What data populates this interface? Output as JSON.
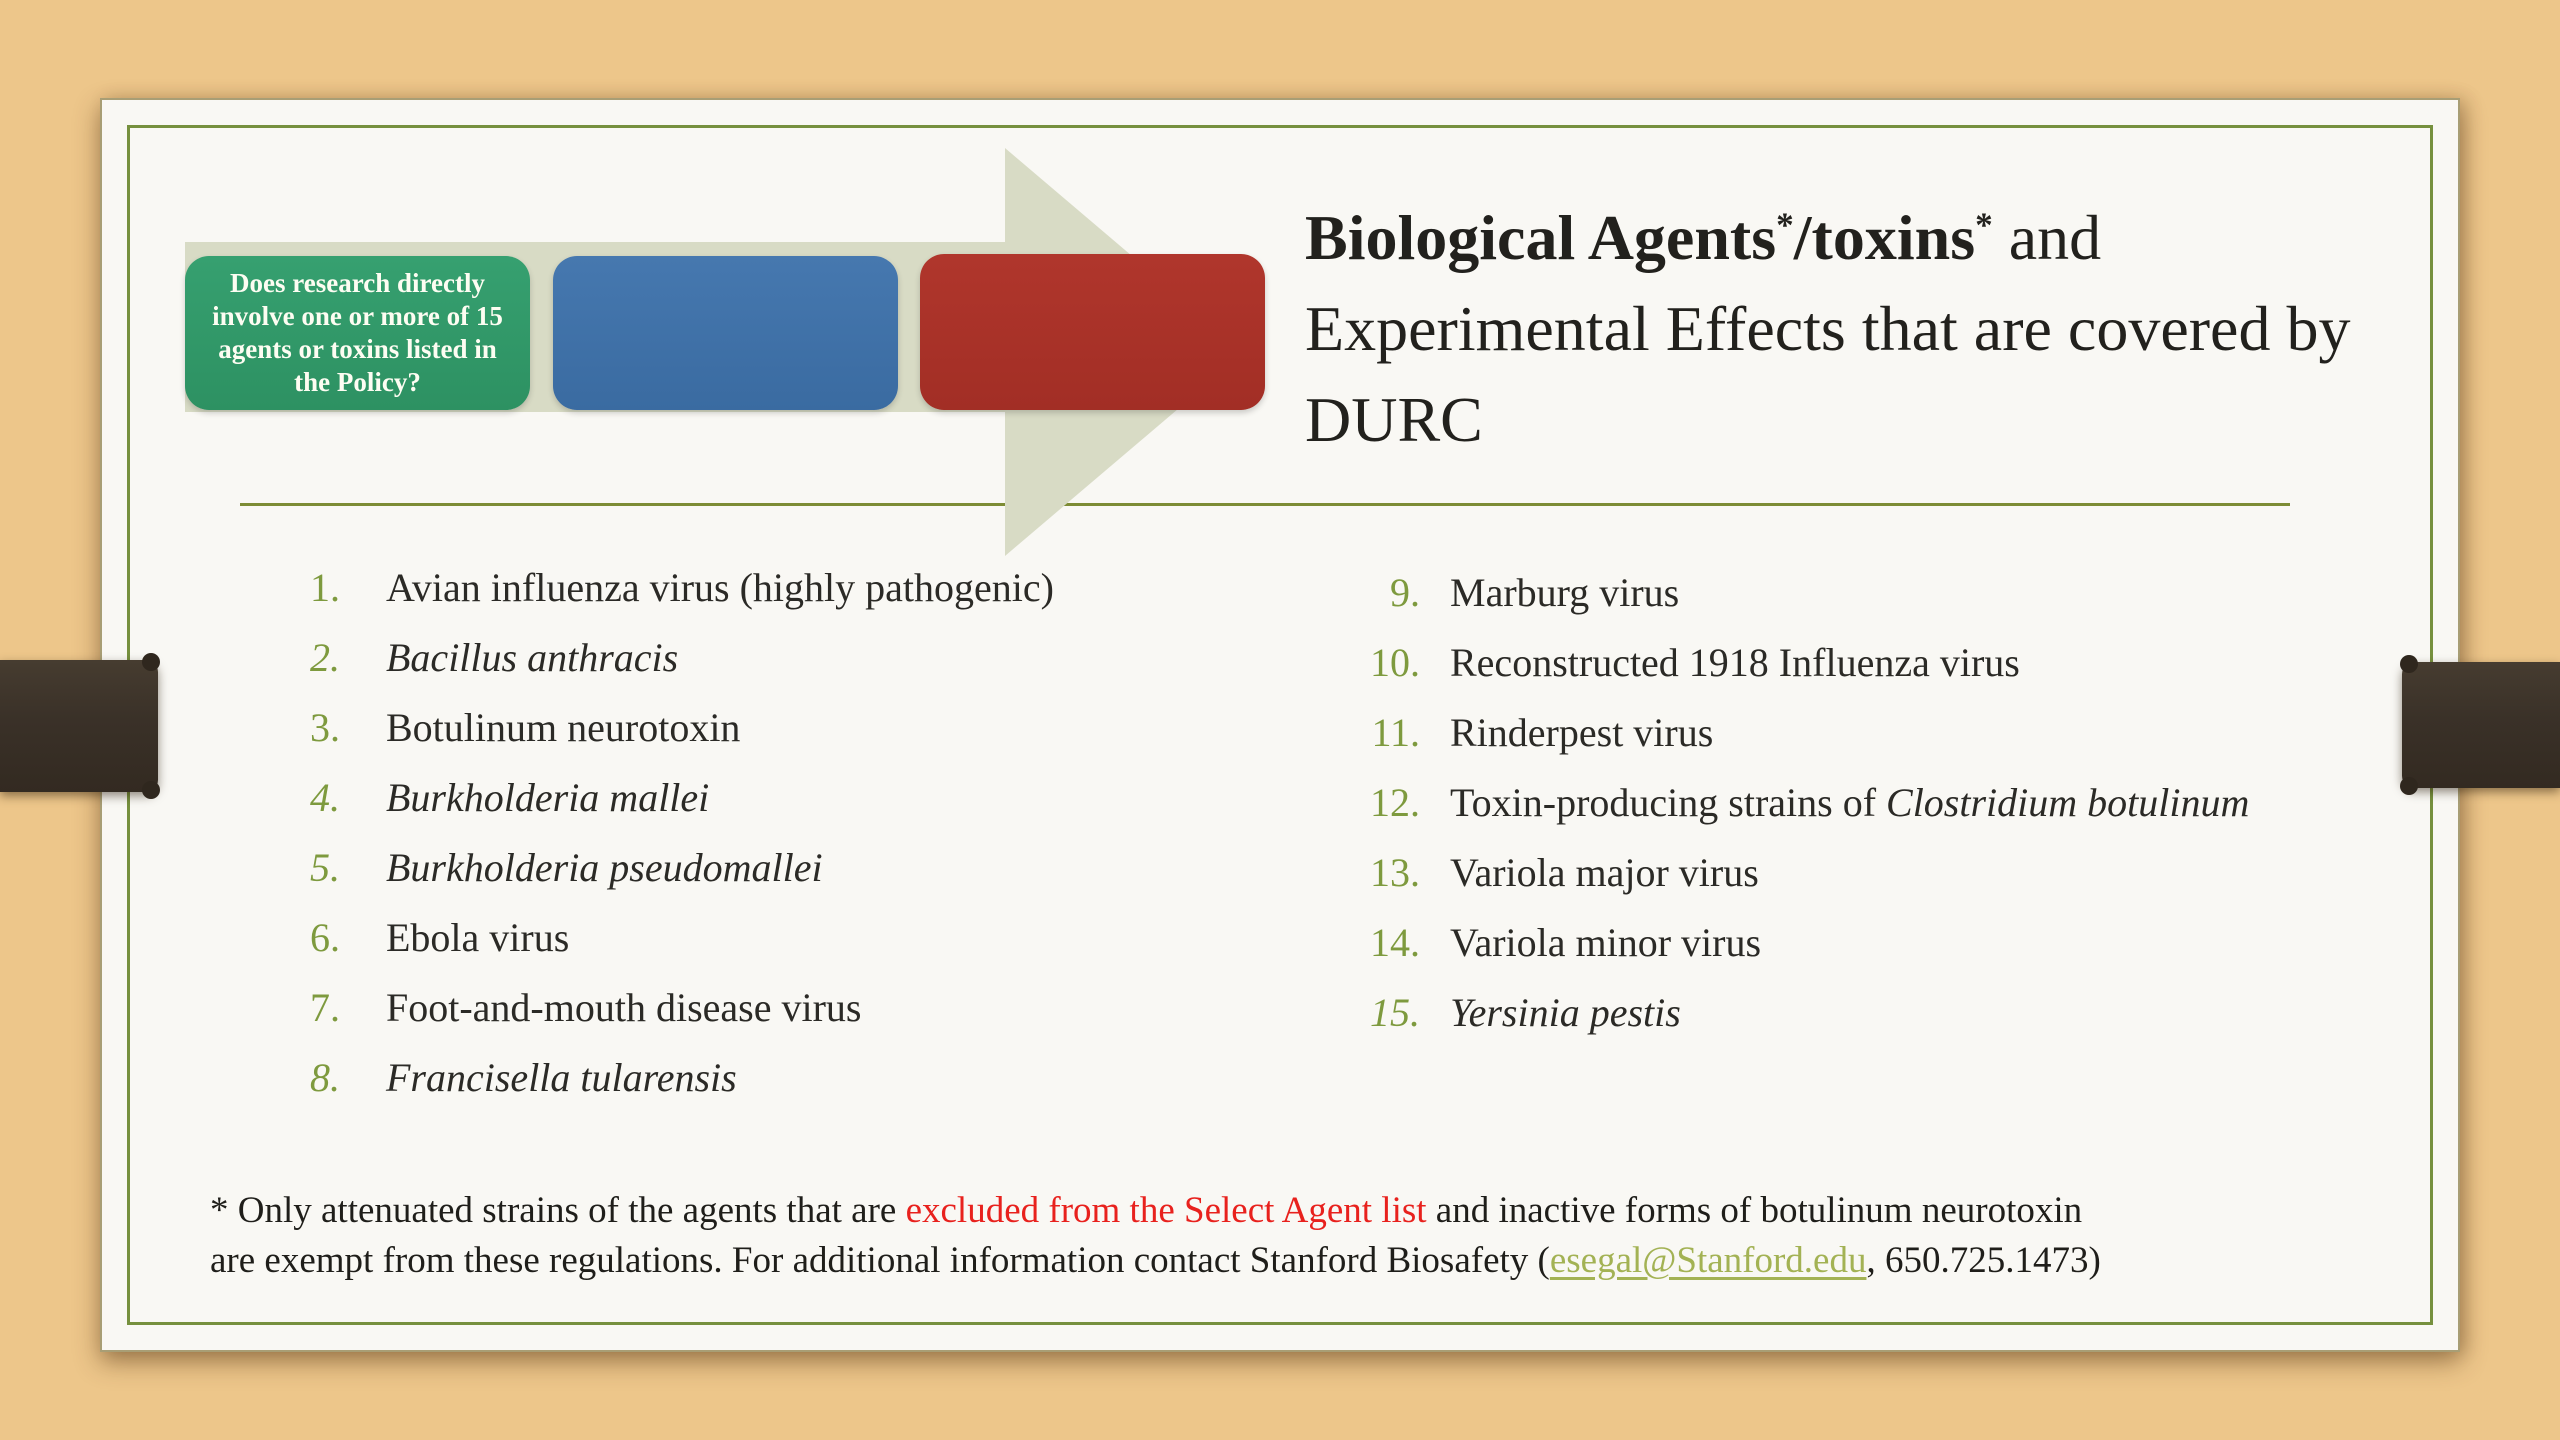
{
  "slide": {
    "flow_diagram": {
      "question_box_text": "Does research directly involve one or more of 15 agents or toxins listed in the Policy?",
      "colors": {
        "question_box_green": "#2f9767",
        "middle_box_blue": "#3e70a6",
        "end_box_red": "#a93129",
        "arrow_sage": "#d8dbc5"
      }
    },
    "title": {
      "bold_part1": "Biological Agents",
      "star1": "*",
      "bold_part2": "/toxins",
      "star2": "*",
      "regular_part": " and Experimental Effects that are covered by DURC"
    },
    "accent_colors": {
      "list_number_olive": "#7e9a3e",
      "separator_olive": "#7d8c35",
      "inner_border_olive": "#76903e",
      "footnote_red": "#e8211d",
      "link_olive": "#a3b254",
      "strap_brown": "#3a3128"
    },
    "lists": {
      "left": [
        {
          "num": "1.",
          "italic": false,
          "segments": [
            {
              "text": "Avian influenza virus (highly pathogenic)",
              "italic": false
            }
          ]
        },
        {
          "num": "2.",
          "italic": true,
          "segments": [
            {
              "text": "Bacillus anthracis",
              "italic": true
            }
          ]
        },
        {
          "num": "3.",
          "italic": false,
          "segments": [
            {
              "text": "Botulinum neurotoxin",
              "italic": false
            }
          ]
        },
        {
          "num": "4.",
          "italic": true,
          "segments": [
            {
              "text": "Burkholderia mallei",
              "italic": true
            }
          ]
        },
        {
          "num": "5.",
          "italic": true,
          "segments": [
            {
              "text": "Burkholderia pseudomallei",
              "italic": true
            }
          ]
        },
        {
          "num": "6.",
          "italic": false,
          "segments": [
            {
              "text": "Ebola virus",
              "italic": false
            }
          ]
        },
        {
          "num": "7.",
          "italic": false,
          "segments": [
            {
              "text": "Foot-and-mouth disease virus",
              "italic": false
            }
          ]
        },
        {
          "num": "8.",
          "italic": true,
          "segments": [
            {
              "text": "Francisella tularensis",
              "italic": true
            }
          ]
        }
      ],
      "right": [
        {
          "num": "9.",
          "italic": false,
          "segments": [
            {
              "text": "Marburg virus",
              "italic": false
            }
          ]
        },
        {
          "num": "10.",
          "italic": false,
          "segments": [
            {
              "text": "Reconstructed 1918 Influenza virus",
              "italic": false
            }
          ]
        },
        {
          "num": "11.",
          "italic": false,
          "segments": [
            {
              "text": "Rinderpest virus",
              "italic": false
            }
          ]
        },
        {
          "num": "12.",
          "italic": false,
          "segments": [
            {
              "text": "Toxin-producing strains of ",
              "italic": false
            },
            {
              "text": "Clostridium botulinum",
              "italic": true
            }
          ]
        },
        {
          "num": "13.",
          "italic": false,
          "segments": [
            {
              "text": "Variola major virus",
              "italic": false
            }
          ]
        },
        {
          "num": "14.",
          "italic": false,
          "segments": [
            {
              "text": "Variola minor virus",
              "italic": false
            }
          ]
        },
        {
          "num": "15.",
          "italic": true,
          "segments": [
            {
              "text": "Yersinia pestis",
              "italic": true
            }
          ]
        }
      ]
    },
    "footnote": {
      "line1": [
        {
          "text": "* Only attenuated strains of the agents that are ",
          "cls": "plain"
        },
        {
          "text": "excluded from the Select Agent list",
          "cls": "red"
        },
        {
          "text": " and inactive forms of botulinum neurotoxin",
          "cls": "plain"
        }
      ],
      "line2": [
        {
          "text": "are exempt from these regulations. For additional information contact Stanford Biosafety (",
          "cls": "plain"
        },
        {
          "text": "esegal@Stanford.edu",
          "cls": "link"
        },
        {
          "text": ", 650.725.1473)",
          "cls": "plain"
        }
      ]
    }
  }
}
